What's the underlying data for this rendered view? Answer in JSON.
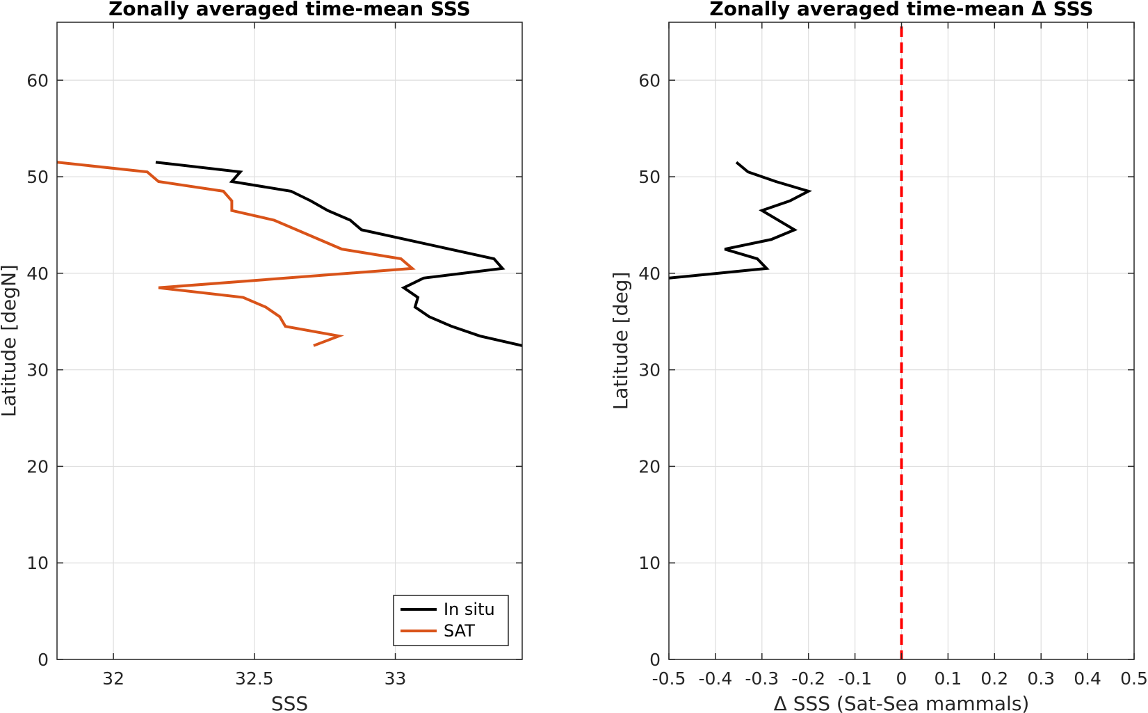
{
  "chart_data": [
    {
      "type": "line",
      "title": "Zonally averaged time-mean SSS",
      "xlabel": "SSS",
      "ylabel": "Latitude [degN]",
      "xlim": [
        31.8,
        33.45
      ],
      "ylim": [
        0,
        66
      ],
      "xticks": [
        32,
        32.5,
        33
      ],
      "xtick_labels": [
        "32",
        "32.5",
        "33"
      ],
      "yticks": [
        0,
        10,
        20,
        30,
        40,
        50,
        60
      ],
      "ytick_labels": [
        "0",
        "10",
        "20",
        "30",
        "40",
        "50",
        "60"
      ],
      "grid": true,
      "legend": {
        "position": "bottom-right"
      },
      "series": [
        {
          "name": "In situ",
          "color": "#000000",
          "points": [
            [
              32.15,
              51.5
            ],
            [
              32.45,
              50.5
            ],
            [
              32.42,
              49.5
            ],
            [
              32.63,
              48.5
            ],
            [
              32.7,
              47.5
            ],
            [
              32.76,
              46.5
            ],
            [
              32.84,
              45.5
            ],
            [
              32.88,
              44.5
            ],
            [
              33.35,
              41.5
            ],
            [
              33.38,
              40.5
            ],
            [
              33.1,
              39.5
            ],
            [
              33.03,
              38.5
            ],
            [
              33.08,
              37.5
            ],
            [
              33.07,
              36.5
            ],
            [
              33.12,
              35.5
            ],
            [
              33.2,
              34.5
            ],
            [
              33.3,
              33.5
            ],
            [
              33.45,
              32.5
            ]
          ]
        },
        {
          "name": "SAT",
          "color": "#D95319",
          "points": [
            [
              31.8,
              51.5
            ],
            [
              32.12,
              50.5
            ],
            [
              32.16,
              49.5
            ],
            [
              32.39,
              48.5
            ],
            [
              32.42,
              47.5
            ],
            [
              32.42,
              46.5
            ],
            [
              32.57,
              45.5
            ],
            [
              32.65,
              44.5
            ],
            [
              32.81,
              42.5
            ],
            [
              33.02,
              41.5
            ],
            [
              33.06,
              40.5
            ],
            [
              32.16,
              38.5
            ],
            [
              32.46,
              37.5
            ],
            [
              32.54,
              36.5
            ],
            [
              32.59,
              35.5
            ],
            [
              32.61,
              34.5
            ],
            [
              32.8,
              33.5
            ],
            [
              32.71,
              32.5
            ]
          ]
        }
      ]
    },
    {
      "type": "line",
      "title": "Zonally averaged time-mean Δ SSS",
      "xlabel": "Δ SSS (Sat-Sea mammals)",
      "ylabel": "Latitude [deg]",
      "xlim": [
        -0.5,
        0.5
      ],
      "ylim": [
        0,
        66
      ],
      "xticks": [
        -0.5,
        -0.4,
        -0.3,
        -0.2,
        -0.1,
        0,
        0.1,
        0.2,
        0.3,
        0.4,
        0.5
      ],
      "xtick_labels": [
        "-0.5",
        "-0.4",
        "-0.3",
        "-0.2",
        "-0.1",
        "0",
        "0.1",
        "0.2",
        "0.3",
        "0.4",
        "0.5"
      ],
      "yticks": [
        0,
        10,
        20,
        30,
        40,
        50,
        60
      ],
      "ytick_labels": [
        "0",
        "10",
        "20",
        "30",
        "40",
        "50",
        "60"
      ],
      "grid": true,
      "reference_line": {
        "x": 0,
        "color": "#FF0000",
        "style": "dashed"
      },
      "series": [
        {
          "name": "",
          "color": "#000000",
          "points": [
            [
              -0.355,
              51.5
            ],
            [
              -0.33,
              50.5
            ],
            [
              -0.27,
              49.5
            ],
            [
              -0.2,
              48.5
            ],
            [
              -0.24,
              47.5
            ],
            [
              -0.3,
              46.5
            ],
            [
              -0.23,
              44.5
            ],
            [
              -0.28,
              43.5
            ],
            [
              -0.38,
              42.5
            ],
            [
              -0.31,
              41.5
            ],
            [
              -0.29,
              40.5
            ],
            [
              -0.5,
              39.5
            ]
          ]
        }
      ]
    }
  ]
}
